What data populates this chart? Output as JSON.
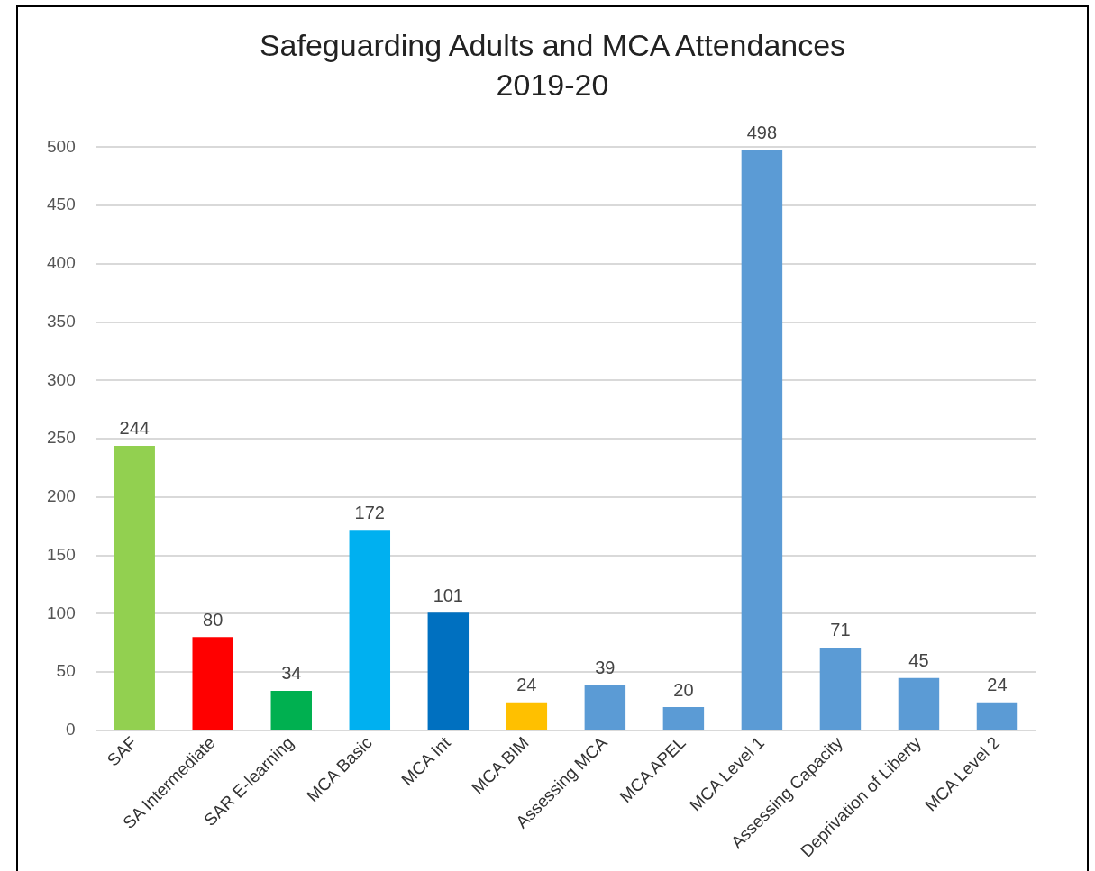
{
  "chart_data": {
    "type": "bar",
    "title": "Safeguarding Adults and MCA Attendances\n2019-20",
    "categories": [
      "SAF",
      "SA Intermediate",
      "SAR E-learning",
      "MCA Basic",
      "MCA Int",
      "MCA BIM",
      "Assessing MCA",
      "MCA APEL",
      "MCA Level 1",
      "Assessing Capacity",
      "Deprivation of Liberty",
      "MCA Level 2"
    ],
    "values": [
      244,
      80,
      34,
      172,
      101,
      24,
      39,
      20,
      498,
      71,
      45,
      24
    ],
    "colors": [
      "#92d050",
      "#ff0000",
      "#00b050",
      "#00b0f0",
      "#0070c0",
      "#ffc000",
      "#5b9bd5",
      "#5b9bd5",
      "#5b9bd5",
      "#5b9bd5",
      "#5b9bd5",
      "#5b9bd5"
    ],
    "ylim": [
      0,
      500
    ],
    "yticks": [
      0,
      50,
      100,
      150,
      200,
      250,
      300,
      350,
      400,
      450,
      500
    ],
    "grid": "y",
    "legend": false,
    "data_labels": true
  }
}
